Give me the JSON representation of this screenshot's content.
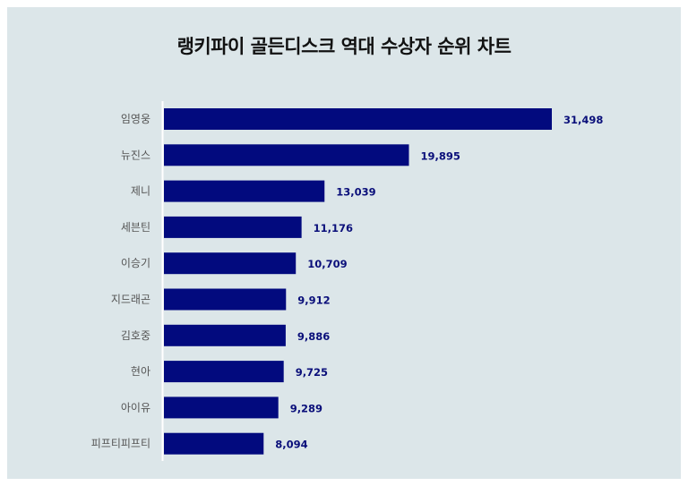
{
  "chart_data": {
    "type": "bar",
    "orientation": "horizontal",
    "title": "랭키파이 골든디스크 역대 수상자 순위 차트",
    "categories": [
      "임영웅",
      "뉴진스",
      "제니",
      "세븐틴",
      "이승기",
      "지드래곤",
      "김호중",
      "현아",
      "아이유",
      "피프티피프티"
    ],
    "values": [
      31498,
      19895,
      13039,
      11176,
      10709,
      9912,
      9886,
      9725,
      9289,
      8094
    ],
    "value_labels": [
      "31,498",
      "19,895",
      "13,039",
      "11,176",
      "10,709",
      "9,912",
      "9,886",
      "9,725",
      "9,289",
      "8,094"
    ],
    "xlabel": "",
    "ylabel": "",
    "xlim": [
      0,
      31498
    ],
    "grid": false,
    "bar_color": "#020a7e",
    "background": "#dce6e9"
  }
}
